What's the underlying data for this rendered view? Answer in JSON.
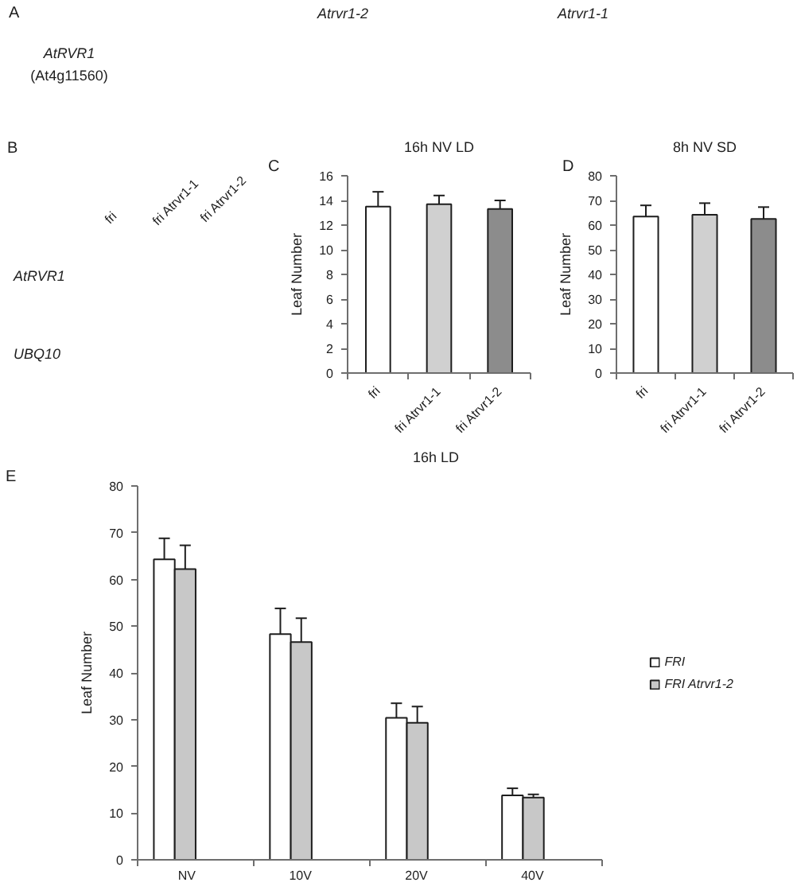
{
  "chart_data": [
    {
      "type": "other",
      "annotations": [
        "A",
        "AtRVR1",
        "(At4g11560)",
        "Atrvr1-2",
        "Atrvr1-1"
      ]
    },
    {
      "type": "other",
      "annotations": [
        "B",
        "fri",
        "fri Atrvr1-1",
        "fri Atrvr1-2",
        "AtRVR1",
        "UBQ10"
      ]
    },
    {
      "type": "bar",
      "title": "16h NV LD",
      "ylabel": "Leaf Number",
      "annotations": [
        "C"
      ],
      "categories": [
        "fri",
        "fri Atrvr1-1",
        "fri Atrvr1-2"
      ],
      "values": [
        13.5,
        13.7,
        13.3
      ],
      "errors": [
        1.2,
        0.7,
        0.7
      ],
      "colors": [
        "#ffffff",
        "#d0d0d0",
        "#8c8c8c"
      ],
      "ylim": [
        0,
        16
      ],
      "yticks": [
        0,
        2,
        4,
        6,
        8,
        10,
        12,
        14,
        16
      ]
    },
    {
      "type": "bar",
      "title": "8h NV SD",
      "ylabel": "Leaf Number",
      "annotations": [
        "D"
      ],
      "categories": [
        "fri",
        "fri Atrvr1-1",
        "fri Atrvr1-2"
      ],
      "values": [
        63.5,
        64.2,
        62.5
      ],
      "errors": [
        4.5,
        4.7,
        4.8
      ],
      "colors": [
        "#ffffff",
        "#d0d0d0",
        "#8c8c8c"
      ],
      "ylim": [
        0,
        80
      ],
      "yticks": [
        0,
        10,
        20,
        30,
        40,
        50,
        60,
        70,
        80
      ]
    },
    {
      "type": "bar",
      "title": "16h LD",
      "ylabel": "Leaf Number",
      "annotations": [
        "E"
      ],
      "categories": [
        "NV",
        "10V",
        "20V",
        "40V"
      ],
      "series": [
        {
          "name": "FRI",
          "color": "#ffffff",
          "values": [
            64.3,
            48.3,
            30.4,
            13.8
          ],
          "errors": [
            4.5,
            5.5,
            3.1,
            1.5
          ]
        },
        {
          "name": "FRI Atrvr1-2",
          "color": "#c8c8c8",
          "values": [
            62.2,
            46.6,
            29.3,
            13.3
          ],
          "errors": [
            5.1,
            5.1,
            3.5,
            0.7
          ]
        },
        {
          "values": [
            null,
            null,
            null,
            null
          ]
        },
        {
          "values": [
            0,
            0,
            0,
            0
          ]
        }
      ],
      "ylim": [
        0,
        80
      ],
      "yticks": [
        0,
        10,
        20,
        30,
        40,
        50,
        60,
        70,
        80
      ],
      "legend": "right"
    }
  ]
}
